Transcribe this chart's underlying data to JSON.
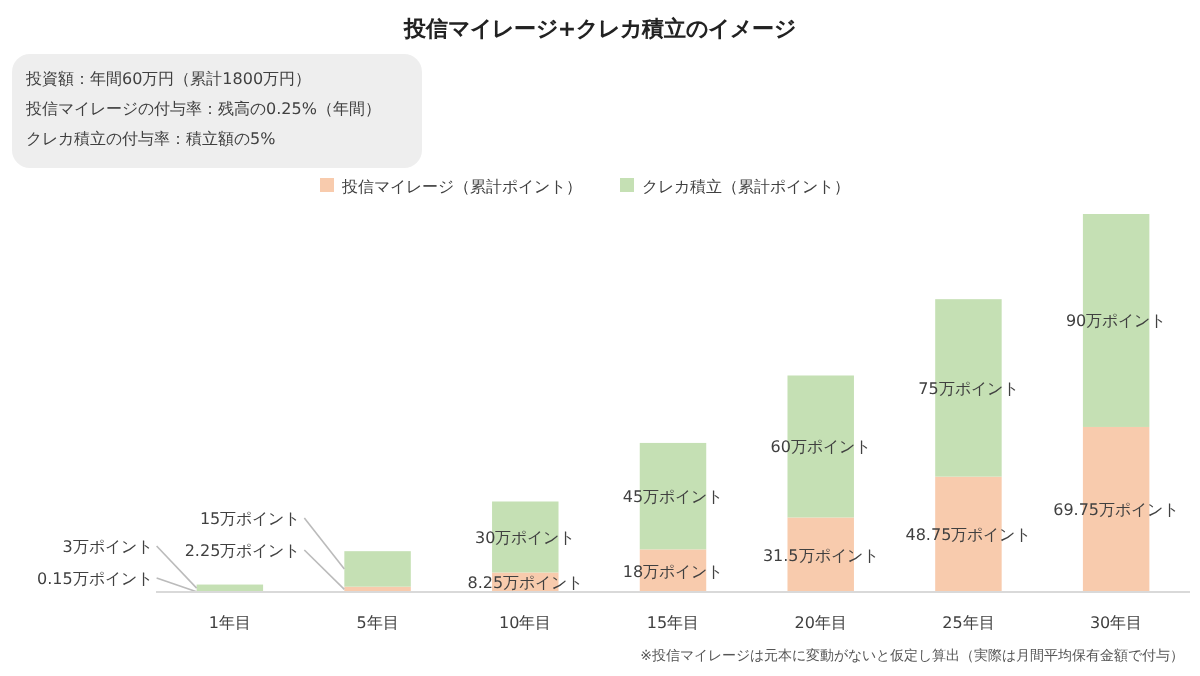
{
  "chart_data": {
    "type": "bar",
    "stacked": true,
    "title": "投信マイレージ+クレカ積立のイメージ",
    "categories": [
      "1年目",
      "5年目",
      "10年目",
      "15年目",
      "20年目",
      "25年目",
      "30年目"
    ],
    "series": [
      {
        "name": "投信マイレージ（累計ポイント）",
        "color": "#f8cbad",
        "values": [
          0.15,
          2.25,
          8.25,
          18,
          31.5,
          48.75,
          69.75
        ],
        "value_labels": [
          "0.15万ポイント",
          "2.25万ポイント",
          "8.25万ポイント",
          "18万ポイント",
          "31.5万ポイント",
          "48.75万ポイント",
          "69.75万ポイント"
        ]
      },
      {
        "name": "クレカ積立（累計ポイント）",
        "color": "#c5e0b4",
        "values": [
          3,
          15,
          30,
          45,
          60,
          75,
          90
        ],
        "value_labels": [
          "3万ポイント",
          "15万ポイント",
          "30万ポイント",
          "45万ポイント",
          "60万ポイント",
          "75万ポイント",
          "90万ポイント"
        ]
      }
    ],
    "legend": "top",
    "annotations": [
      "投資額：年間60万円（累計1800万円）",
      "投信マイレージの付与率：残高の0.25%（年間）",
      "クレカ積立の付与率：積立額の5%",
      "※投信マイレージは元本に変動がないと仮定し算出（実際は月間平均保有金額で付与）"
    ]
  }
}
